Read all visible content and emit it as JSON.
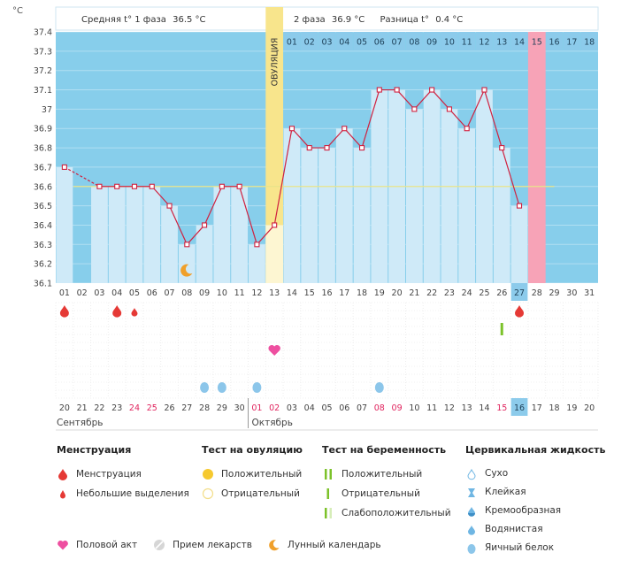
{
  "header": {
    "unit": "°C",
    "phase1_label": "Средняя t° 1 фаза",
    "phase1_value": "36.5 °C",
    "phase2_label": "2 фаза",
    "phase2_value": "36.9 °C",
    "diff_label": "Разница t°",
    "diff_value": "0.4 °C"
  },
  "ovulation_label": "ОВУЛЯЦИЯ",
  "chart_data": {
    "type": "line",
    "title": "",
    "ylim": [
      36.1,
      37.4
    ],
    "yticks": [
      "37.4",
      "37.3",
      "37.2",
      "37.1",
      "37",
      "36.9",
      "36.8",
      "36.7",
      "36.6",
      "36.5",
      "36.4",
      "36.3",
      "36.2",
      "36.1"
    ],
    "coverline": 36.6,
    "cycle_days": [
      "01",
      "02",
      "03",
      "04",
      "05",
      "06",
      "07",
      "08",
      "09",
      "10",
      "11",
      "12",
      "13",
      "14",
      "15",
      "16",
      "17",
      "18",
      "19",
      "20",
      "21",
      "22",
      "23",
      "24",
      "25",
      "26",
      "27",
      "28",
      "29",
      "30",
      "31"
    ],
    "temperatures": [
      36.7,
      null,
      36.6,
      36.6,
      36.6,
      36.6,
      36.5,
      36.3,
      36.4,
      36.6,
      36.6,
      36.3,
      36.4,
      36.9,
      36.8,
      36.8,
      36.9,
      36.8,
      37.1,
      37.1,
      37.0,
      37.1,
      37.0,
      36.9,
      37.1,
      36.8,
      36.5,
      null,
      null,
      null,
      null
    ],
    "ovulation_day": 13,
    "phase2_days": [
      "01",
      "02",
      "03",
      "04",
      "05",
      "06",
      "07",
      "08",
      "09",
      "10",
      "11",
      "12",
      "13",
      "14",
      "15",
      "16",
      "17",
      "18"
    ],
    "phase2_next_start": 15,
    "highlight_day": 27,
    "calendar_dates": [
      "20",
      "21",
      "22",
      "23",
      "24",
      "25",
      "26",
      "27",
      "28",
      "29",
      "30",
      "01",
      "02",
      "03",
      "04",
      "05",
      "06",
      "07",
      "08",
      "09",
      "10",
      "11",
      "12",
      "13",
      "14",
      "15",
      "16",
      "17",
      "18",
      "19",
      "20"
    ],
    "red_dates_idx": [
      4,
      5,
      11,
      12,
      18,
      19,
      25
    ],
    "month1": "Сентябрь",
    "month2": "Октябрь",
    "moon_day": 8,
    "menstruation_days": [
      1,
      4,
      27
    ],
    "spotting_days": [
      5
    ],
    "intercourse_days": [
      13
    ],
    "pregnancy_test_negative_days": [
      26
    ],
    "eggwhite_days": [
      9,
      10,
      12,
      19
    ]
  },
  "legend": {
    "menstruation": {
      "title": "Менструация",
      "items": [
        "Менструация",
        "Небольшие выделения"
      ]
    },
    "ovulation_test": {
      "title": "Тест на овуляцию",
      "items": [
        "Положительный",
        "Отрицательный"
      ]
    },
    "pregnancy_test": {
      "title": "Тест на беременность",
      "items": [
        "Положительный",
        "Отрицательный",
        "Слабоположительный"
      ]
    },
    "cervical": {
      "title": "Цервикальная жидкость",
      "items": [
        "Сухо",
        "Клейкая",
        "Кремообразная",
        "Водянистая",
        "Яичный белок"
      ]
    },
    "bottom": [
      "Половой акт",
      "Прием лекарств",
      "Лунный календарь"
    ]
  },
  "colors": {
    "sky": "#87CEEB",
    "bar": "#CFEAF8",
    "bar_line": "#A6D4EE",
    "line": "#D0213F",
    "ovulation": "#F8E58C",
    "next_cycle": "#F7A3B7",
    "highlight": "#8CCBEB",
    "drop_red": "#E53935",
    "drop_blue": "#7FBFE8",
    "sun": "#F6C92F",
    "moon": "#F0A02A",
    "heart": "#EE4FA0",
    "green": "#7CC22A"
  }
}
